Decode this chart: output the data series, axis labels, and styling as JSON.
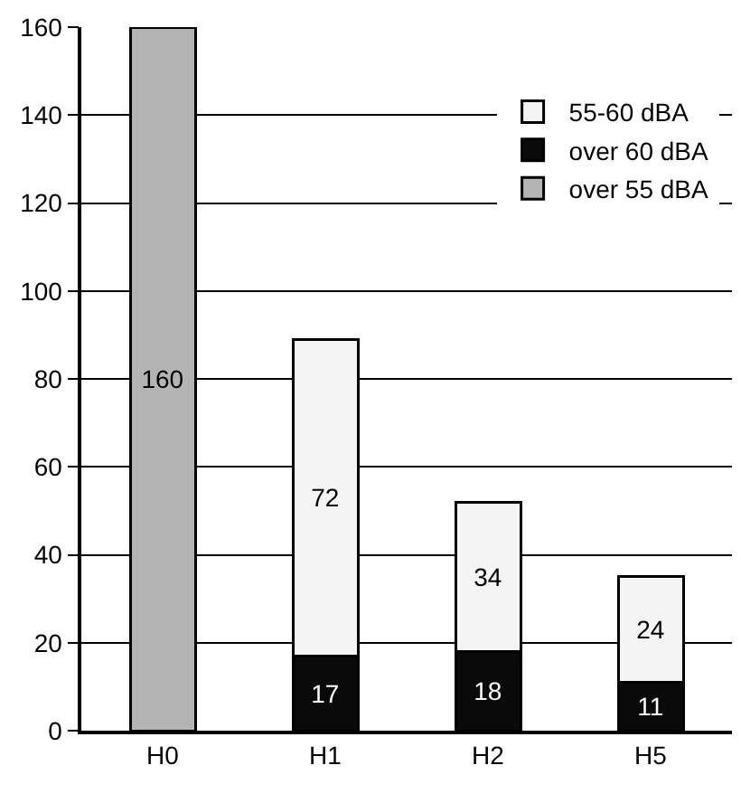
{
  "chart_data": {
    "type": "bar",
    "stacked": true,
    "categories": [
      "H0",
      "H1",
      "H2",
      "H5"
    ],
    "series": [
      {
        "name": "over 55 dBA",
        "color": "#b4b4b4",
        "values": [
          160,
          null,
          null,
          null
        ]
      },
      {
        "name": "over 60 dBA",
        "color": "#0a0a0a",
        "values": [
          null,
          17,
          18,
          11
        ]
      },
      {
        "name": "55-60 dBA",
        "color": "#f4f4f4",
        "values": [
          null,
          72,
          34,
          24
        ]
      }
    ],
    "ylim": [
      0,
      160
    ],
    "yticks": [
      0,
      20,
      40,
      60,
      80,
      100,
      120,
      140,
      160
    ],
    "grid": "y",
    "legend": "top right",
    "data_labels": true
  }
}
